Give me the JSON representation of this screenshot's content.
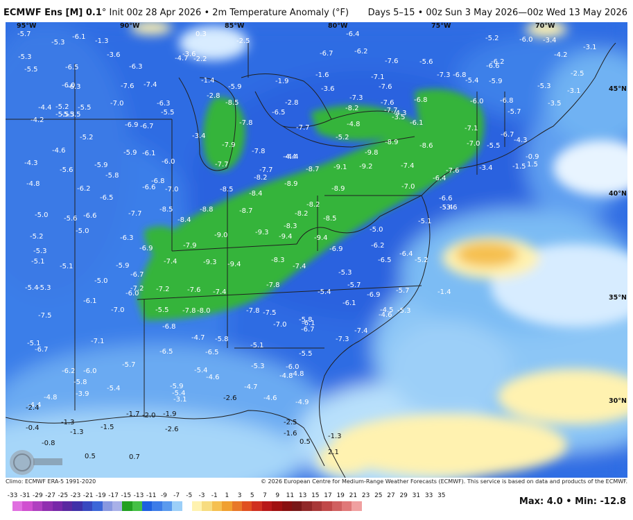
{
  "header": {
    "model": "ECMWF Ens [M] 0.1",
    "init": "° Init 00z 28 Apr 2026 • 2m Temperature Anomaly (°F)",
    "valid": "Days 5–15 • 00z Sun 3 May 2026—00z Wed 13 May 2026"
  },
  "grid_labels": {
    "lon": [
      "95°W",
      "90°W",
      "85°W",
      "80°W",
      "75°W",
      "70°W"
    ],
    "lat": [
      "45°N",
      "40°N",
      "35°N",
      "30°N"
    ]
  },
  "footer": {
    "climo": "Climo: ECMWF ERA-5 1991-2020",
    "copyright": "© 2026 European Centre for Medium-Range Weather Forecasts (ECMWF). This service is based on data and products of the ECMWF.",
    "max_label": "Max:",
    "max_value": "4.0",
    "separator": "•",
    "min_label": "Min:",
    "min_value": "-12.8"
  },
  "colorbar": {
    "ticks": [
      "-33",
      "-31",
      "-29",
      "-27",
      "-25",
      "-23",
      "-21",
      "-19",
      "-17",
      "-15",
      "-13",
      "-11",
      "-9",
      "-7",
      "-5",
      "-3",
      "-1",
      "1",
      "3",
      "5",
      "7",
      "9",
      "11",
      "13",
      "15",
      "17",
      "19",
      "21",
      "23",
      "25",
      "27",
      "29",
      "31",
      "33",
      "35"
    ],
    "colors": [
      "#e070e0",
      "#d050d0",
      "#b040c0",
      "#9030b0",
      "#7828a8",
      "#5a28a0",
      "#4030a8",
      "#3848c0",
      "#3c66d8",
      "#8898e0",
      "#a8b0e8",
      "#22a022",
      "#44c044",
      "#1e60e0",
      "#3c7ce8",
      "#5a9aee",
      "#9ccff8",
      "#ffffff",
      "#fff2b0",
      "#f7dc80",
      "#f5c050",
      "#f0a030",
      "#e87828",
      "#e05020",
      "#d03020",
      "#b81818",
      "#a01010",
      "#881010",
      "#781818",
      "#902828",
      "#a83838",
      "#c04848",
      "#d06060",
      "#e07878",
      "#f0a0a0"
    ]
  },
  "map_values": [
    {
      "t": "-5.7"
    },
    {
      "t": "-6.1"
    },
    {
      "t": "-1.3"
    },
    {
      "t": "0.3"
    },
    {
      "t": "-2.5"
    },
    {
      "t": "-6.4"
    },
    {
      "t": "-5.2"
    },
    {
      "t": "-6.0"
    },
    {
      "t": "-3.4"
    },
    {
      "t": "-3.1"
    },
    {
      "t": "-5.3"
    },
    {
      "t": "-5.3"
    },
    {
      "t": "-3.6"
    },
    {
      "t": "-4.7"
    },
    {
      "t": "-2.2"
    },
    {
      "t": "-6.7"
    },
    {
      "t": "-6.2"
    },
    {
      "t": "-7.6"
    },
    {
      "t": "-5.6"
    },
    {
      "t": "-4.2"
    },
    {
      "t": "-5.5"
    },
    {
      "t": "-6.5"
    },
    {
      "t": "-6.3"
    },
    {
      "t": "-3.6"
    },
    {
      "t": "-6.6"
    },
    {
      "t": "-6.2"
    },
    {
      "t": "-2.5"
    },
    {
      "t": "-7.3"
    },
    {
      "t": "-6.8"
    },
    {
      "t": "-1.6"
    },
    {
      "t": "-7.1"
    },
    {
      "t": "-6.0"
    },
    {
      "t": "-7.6"
    },
    {
      "t": "-7.4"
    },
    {
      "t": "-1.4"
    },
    {
      "t": "-5.9"
    },
    {
      "t": "-1.9"
    },
    {
      "t": "-3.6"
    },
    {
      "t": "-7.6"
    },
    {
      "t": "-5.9"
    },
    {
      "t": "-5.4"
    },
    {
      "t": "-5.3"
    },
    {
      "t": "-3.1"
    },
    {
      "t": "-6.3"
    },
    {
      "t": "-2.8"
    },
    {
      "t": "-8.5"
    },
    {
      "t": "-2.8"
    },
    {
      "t": "-7.3"
    },
    {
      "t": "-6.8"
    },
    {
      "t": "-6.0"
    },
    {
      "t": "-6.8"
    },
    {
      "t": "-3.5"
    },
    {
      "t": "-7.0"
    },
    {
      "t": "-6.3"
    },
    {
      "t": "-5.5"
    },
    {
      "t": "-4.4"
    },
    {
      "t": "-5.2"
    },
    {
      "t": "-5.5"
    },
    {
      "t": "-8.2"
    },
    {
      "t": "-7.7"
    },
    {
      "t": "-5.7"
    },
    {
      "t": "-5.5"
    },
    {
      "t": "-5.3"
    },
    {
      "t": "-5.5"
    },
    {
      "t": "-6.5"
    },
    {
      "t": "-7.6"
    },
    {
      "t": "-4.3"
    },
    {
      "t": "-7.8"
    },
    {
      "t": "-3.5"
    },
    {
      "t": "-6.1"
    },
    {
      "t": "-4.2"
    },
    {
      "t": "-6.9"
    },
    {
      "t": "-6.7"
    },
    {
      "t": "-7.7"
    },
    {
      "t": "-7.1"
    },
    {
      "t": "-3.4"
    },
    {
      "t": "-4.8"
    },
    {
      "t": "-6.7"
    },
    {
      "t": "-4.3"
    },
    {
      "t": "-5.2"
    },
    {
      "t": "-5.2"
    },
    {
      "t": "-7.9"
    },
    {
      "t": "-8.9"
    },
    {
      "t": "-8.6"
    },
    {
      "t": "-7.0"
    },
    {
      "t": "-5.5"
    },
    {
      "t": "-4.6"
    },
    {
      "t": "-5.9"
    },
    {
      "t": "-6.1"
    },
    {
      "t": "-7.8"
    },
    {
      "t": "-9.8"
    },
    {
      "t": "-4.4"
    },
    {
      "t": "-4.4"
    },
    {
      "t": "-4.3"
    },
    {
      "t": "-6.0"
    },
    {
      "t": "-7.7"
    },
    {
      "t": "-9.1"
    },
    {
      "t": "-9.2"
    },
    {
      "t": "-7.4"
    },
    {
      "t": "-3.4"
    },
    {
      "t": "-1.5"
    },
    {
      "t": "-0.9"
    },
    {
      "t": "1.5"
    },
    {
      "t": "-5.9"
    },
    {
      "t": "-7.7"
    },
    {
      "t": "-7.6"
    },
    {
      "t": "-5.6"
    },
    {
      "t": "-5.8"
    },
    {
      "t": "-6.8"
    },
    {
      "t": "-8.2"
    },
    {
      "t": "-8.7"
    },
    {
      "t": "-6.4"
    },
    {
      "t": "-4.8"
    },
    {
      "t": "-6.2"
    },
    {
      "t": "-6.6"
    },
    {
      "t": "-7.0"
    },
    {
      "t": "-8.5"
    },
    {
      "t": "-8.9"
    },
    {
      "t": "-8.9"
    },
    {
      "t": "-7.0"
    },
    {
      "t": "-6.5"
    },
    {
      "t": "-8.4"
    },
    {
      "t": "-6.6"
    },
    {
      "t": "-5.4"
    },
    {
      "t": "-8.8"
    },
    {
      "t": "-8.2"
    },
    {
      "t": "-3.6"
    },
    {
      "t": "-5.0"
    },
    {
      "t": "-5.6"
    },
    {
      "t": "-6.6"
    },
    {
      "t": "-7.7"
    },
    {
      "t": "-8.5"
    },
    {
      "t": "-8.4"
    },
    {
      "t": "-8.7"
    },
    {
      "t": "-8.2"
    },
    {
      "t": "-8.5"
    },
    {
      "t": "-5.1"
    },
    {
      "t": "-5.0"
    },
    {
      "t": "-8.3"
    },
    {
      "t": "-5.2"
    },
    {
      "t": "-9.0"
    },
    {
      "t": "-9.3"
    },
    {
      "t": "-5.0"
    },
    {
      "t": "-6.3"
    },
    {
      "t": "-7.9"
    },
    {
      "t": "-9.4"
    },
    {
      "t": "-9.4"
    },
    {
      "t": "-5.3"
    },
    {
      "t": "-6.9"
    },
    {
      "t": "-6.9"
    },
    {
      "t": "-6.2"
    },
    {
      "t": "-6.4"
    },
    {
      "t": "-5.1"
    },
    {
      "t": "-5.2"
    },
    {
      "t": "-7.4"
    },
    {
      "t": "-9.3"
    },
    {
      "t": "-9.4"
    },
    {
      "t": "-8.3"
    },
    {
      "t": "-6.5"
    },
    {
      "t": "-5.1"
    },
    {
      "t": "-5.9"
    },
    {
      "t": "-7.4"
    },
    {
      "t": "-5.3"
    },
    {
      "t": "-6.7"
    },
    {
      "t": "-5.0"
    },
    {
      "t": "-5.4"
    },
    {
      "t": "-5.3"
    },
    {
      "t": "-7.2"
    },
    {
      "t": "-7.6"
    },
    {
      "t": "-7.4"
    },
    {
      "t": "-7.8"
    },
    {
      "t": "-5.7"
    },
    {
      "t": "-1.4"
    },
    {
      "t": "-6.0"
    },
    {
      "t": "-7.2"
    },
    {
      "t": "-5.4"
    },
    {
      "t": "-6.1"
    },
    {
      "t": "-5.5"
    },
    {
      "t": "-7.8"
    },
    {
      "t": "-8.0"
    },
    {
      "t": "-7.8"
    },
    {
      "t": "-7.5"
    },
    {
      "t": "-5.8"
    },
    {
      "t": "-6.1"
    },
    {
      "t": "-6.9"
    },
    {
      "t": "-5.7"
    },
    {
      "t": "-4.5"
    },
    {
      "t": "-5.3"
    },
    {
      "t": "-7.0"
    },
    {
      "t": "-7.5"
    },
    {
      "t": "-7.0"
    },
    {
      "t": "-6.8"
    },
    {
      "t": "-6.1"
    },
    {
      "t": "-4.6"
    },
    {
      "t": "-6.7"
    },
    {
      "t": "-7.4"
    },
    {
      "t": "-7.1"
    },
    {
      "t": "-4.7"
    },
    {
      "t": "-5.8"
    },
    {
      "t": "-7.3"
    },
    {
      "t": "-6.5"
    },
    {
      "t": "-6.5"
    },
    {
      "t": "-5.1"
    },
    {
      "t": "-5.5"
    },
    {
      "t": "-5.1"
    },
    {
      "t": "-6.7"
    },
    {
      "t": "-5.7"
    },
    {
      "t": "-5.3"
    },
    {
      "t": "-6.0"
    },
    {
      "t": "-6.2"
    },
    {
      "t": "-6.0"
    },
    {
      "t": "-5.4"
    },
    {
      "t": "-4.8"
    },
    {
      "t": "-4.8"
    },
    {
      "t": "-5.8"
    },
    {
      "t": "-5.4"
    },
    {
      "t": "-4.6"
    },
    {
      "t": "-4.7"
    },
    {
      "t": "-5.9"
    },
    {
      "t": "-3.9"
    },
    {
      "t": "-4.4"
    },
    {
      "t": "-4.8"
    },
    {
      "t": "-5.4"
    },
    {
      "t": "-2.6"
    },
    {
      "t": "-4.6"
    },
    {
      "t": "-4.9"
    },
    {
      "t": "-2.4"
    },
    {
      "t": "-3.1"
    },
    {
      "t": "-1.7"
    },
    {
      "t": "-2.0"
    },
    {
      "t": "-1.9"
    },
    {
      "t": "-1.3"
    },
    {
      "t": "-1.5"
    },
    {
      "t": "-2.5"
    },
    {
      "t": "-2.6"
    },
    {
      "t": "-1.6"
    },
    {
      "t": "0.5"
    },
    {
      "t": "-1.3"
    },
    {
      "t": "-0.4"
    },
    {
      "t": "-0.8"
    },
    {
      "t": "-1.3"
    },
    {
      "t": "2.1"
    },
    {
      "t": "0.5"
    },
    {
      "t": "0.7"
    }
  ]
}
